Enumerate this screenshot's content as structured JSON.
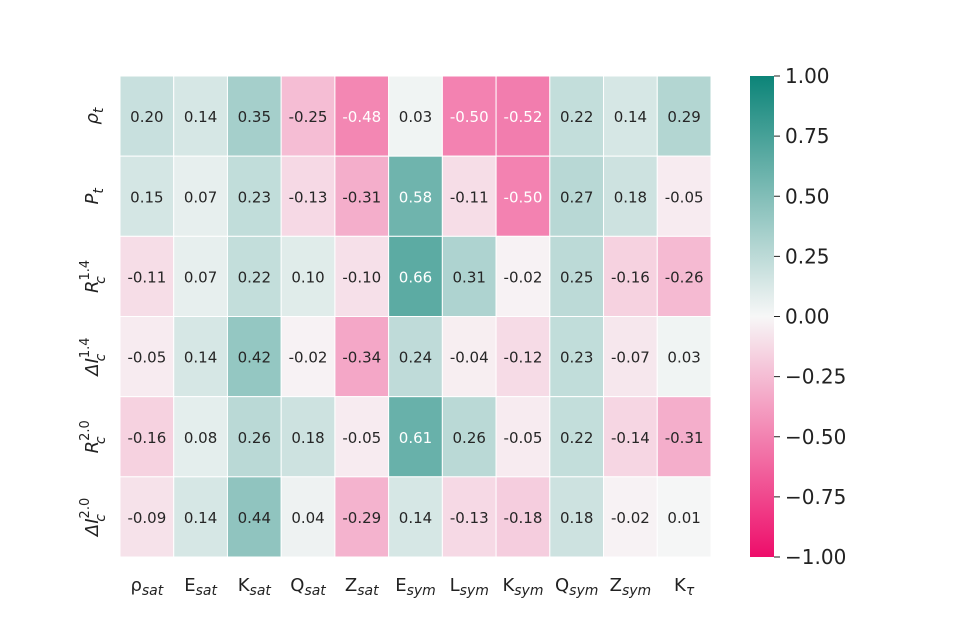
{
  "chart_data": {
    "type": "heatmap",
    "columns": [
      {
        "base": "ρ",
        "sub": "sat"
      },
      {
        "base": "E",
        "sub": "sat"
      },
      {
        "base": "K",
        "sub": "sat"
      },
      {
        "base": "Q",
        "sub": "sat"
      },
      {
        "base": "Z",
        "sub": "sat"
      },
      {
        "base": "E",
        "sub": "sym"
      },
      {
        "base": "L",
        "sub": "sym"
      },
      {
        "base": "K",
        "sub": "sym"
      },
      {
        "base": "Q",
        "sub": "sym"
      },
      {
        "base": "Z",
        "sub": "sym"
      },
      {
        "base": "K",
        "sub": "τ"
      }
    ],
    "rows": [
      {
        "base": "ρ",
        "sub": "t",
        "sup": ""
      },
      {
        "base": "P",
        "sub": "t",
        "sup": ""
      },
      {
        "base": "R",
        "sub": "c",
        "sup": "1.4"
      },
      {
        "base": "ΔI",
        "sub": "c",
        "sup": "1.4"
      },
      {
        "base": "R",
        "sub": "c",
        "sup": "2.0"
      },
      {
        "base": "ΔI",
        "sub": "c",
        "sup": "2.0"
      }
    ],
    "values": [
      [
        0.2,
        0.14,
        0.35,
        -0.25,
        -0.48,
        0.03,
        -0.5,
        -0.52,
        0.22,
        0.14,
        0.29
      ],
      [
        0.15,
        0.07,
        0.23,
        -0.13,
        -0.31,
        0.58,
        -0.11,
        -0.5,
        0.27,
        0.18,
        -0.05
      ],
      [
        -0.11,
        0.07,
        0.22,
        0.1,
        -0.1,
        0.66,
        0.31,
        -0.02,
        0.25,
        -0.16,
        -0.26
      ],
      [
        -0.05,
        0.14,
        0.42,
        -0.02,
        -0.34,
        0.24,
        -0.04,
        -0.12,
        0.23,
        -0.07,
        0.03
      ],
      [
        -0.16,
        0.08,
        0.26,
        0.18,
        -0.05,
        0.61,
        0.26,
        -0.05,
        0.22,
        -0.14,
        -0.31
      ],
      [
        -0.09,
        0.14,
        0.44,
        0.04,
        -0.29,
        0.14,
        -0.13,
        -0.18,
        0.18,
        -0.02,
        0.01
      ]
    ],
    "labels": [
      [
        "0.20",
        "0.14",
        "0.35",
        "-0.25",
        "-0.48",
        "0.03",
        "-0.50",
        "-0.52",
        "0.22",
        "0.14",
        "0.29"
      ],
      [
        "0.15",
        "0.07",
        "0.23",
        "-0.13",
        "-0.31",
        "0.58",
        "-0.11",
        "-0.50",
        "0.27",
        "0.18",
        "-0.05"
      ],
      [
        "-0.11",
        "0.07",
        "0.22",
        "0.10",
        "-0.10",
        "0.66",
        "0.31",
        "-0.02",
        "0.25",
        "-0.16",
        "-0.26"
      ],
      [
        "-0.05",
        "0.14",
        "0.42",
        "-0.02",
        "-0.34",
        "0.24",
        "-0.04",
        "-0.12",
        "0.23",
        "-0.07",
        "0.03"
      ],
      [
        "-0.16",
        "0.08",
        "0.26",
        "0.18",
        "-0.05",
        "0.61",
        "0.26",
        "-0.05",
        "0.22",
        "-0.14",
        "-0.31"
      ],
      [
        "-0.09",
        "0.14",
        "0.44",
        "0.04",
        "-0.29",
        "0.14",
        "-0.13",
        "-0.18",
        "0.18",
        "-0.02",
        "0.01"
      ]
    ],
    "vmin": -1.0,
    "vmax": 1.0,
    "colormap": {
      "negative": "#ee0d6a",
      "center": "#f7f7f7",
      "positive": "#0c8478"
    },
    "colorbar_ticks": [
      "1.00",
      "0.75",
      "0.50",
      "0.25",
      "0.00",
      "−0.25",
      "−0.50",
      "−0.75",
      "−1.00"
    ],
    "colorbar_values": [
      1.0,
      0.75,
      0.5,
      0.25,
      0.0,
      -0.25,
      -0.5,
      -0.75,
      -1.0
    ]
  }
}
